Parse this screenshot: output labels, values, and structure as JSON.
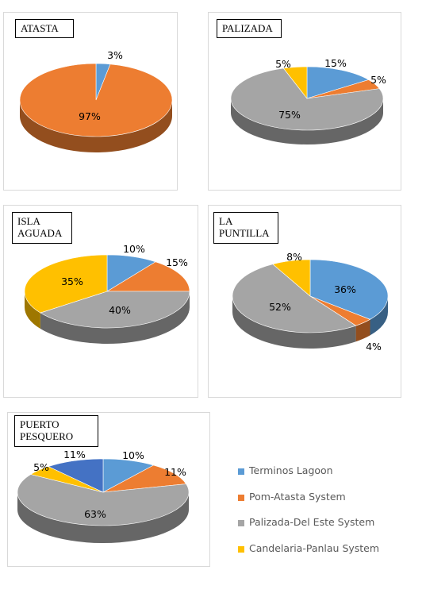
{
  "colors": {
    "terminos": "#5B9BD5",
    "pomatasta": "#ED7D31",
    "palizada": "#A5A5A5",
    "candelaria": "#FFC000"
  },
  "legend": [
    {
      "label": "Terminos Lagoon",
      "color_key": "terminos"
    },
    {
      "label": "Pom-Atasta System",
      "color_key": "pomatasta"
    },
    {
      "label": "Palizada-Del Este System",
      "color_key": "palizada"
    },
    {
      "label": "Candelaria-Panlau System",
      "color_key": "candelaria"
    }
  ],
  "chart_data": [
    {
      "type": "pie",
      "title": "ATASTA",
      "slices": [
        {
          "series": "Terminos Lagoon",
          "value": 3,
          "label": "3%"
        },
        {
          "series": "Pom-Atasta System",
          "value": 97,
          "label": "97%"
        }
      ]
    },
    {
      "type": "pie",
      "title": "PALIZADA",
      "slices": [
        {
          "series": "Terminos Lagoon",
          "value": 15,
          "label": "15%"
        },
        {
          "series": "Pom-Atasta System",
          "value": 5,
          "label": "5%"
        },
        {
          "series": "Palizada-Del Este System",
          "value": 75,
          "label": "75%"
        },
        {
          "series": "Candelaria-Panlau System",
          "value": 5,
          "label": "5%"
        }
      ]
    },
    {
      "type": "pie",
      "title": "ISLA\nAGUADA",
      "slices": [
        {
          "series": "Terminos Lagoon",
          "value": 10,
          "label": "10%"
        },
        {
          "series": "Pom-Atasta System",
          "value": 15,
          "label": "15%"
        },
        {
          "series": "Palizada-Del Este System",
          "value": 40,
          "label": "40%"
        },
        {
          "series": "Candelaria-Panlau System",
          "value": 35,
          "label": "35%"
        }
      ]
    },
    {
      "type": "pie",
      "title": "LA\nPUNTILLA",
      "slices": [
        {
          "series": "Terminos Lagoon",
          "value": 36,
          "label": "36%"
        },
        {
          "series": "Pom-Atasta System",
          "value": 4,
          "label": "4%"
        },
        {
          "series": "Palizada-Del Este System",
          "value": 52,
          "label": "52%"
        },
        {
          "series": "Candelaria-Panlau System",
          "value": 8,
          "label": "8%"
        }
      ]
    },
    {
      "type": "pie",
      "title": "PUERTO\nPESQUERO",
      "slices": [
        {
          "series": "Terminos Lagoon",
          "value": 10,
          "label": "10%"
        },
        {
          "series": "Pom-Atasta System",
          "value": 11,
          "label": "11%"
        },
        {
          "series": "Palizada-Del Este System",
          "value": 63,
          "label": "63%"
        },
        {
          "series": "Candelaria-Panlau System",
          "value": 5,
          "label": "5%"
        },
        {
          "series": "Terminos Lagoon",
          "value": 11,
          "label": "11%",
          "shade": "dark"
        }
      ]
    }
  ]
}
